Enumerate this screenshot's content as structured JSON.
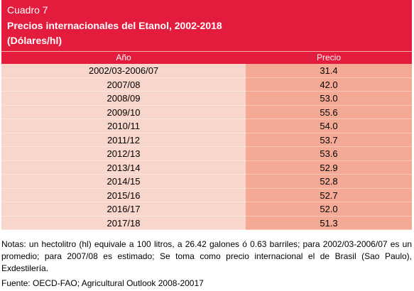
{
  "header": {
    "label": "Cuadro 7",
    "title": "Precios internacionales del Etanol, 2002-2018",
    "subtitle": "(Dólares/hl)"
  },
  "table": {
    "columns": [
      "Año",
      "Precio"
    ],
    "rows": [
      [
        "2002/03-2006/07",
        "31.4"
      ],
      [
        "2007/08",
        "42.0"
      ],
      [
        "2008/09",
        "53.0"
      ],
      [
        "2009/10",
        "55.6"
      ],
      [
        "2010/11",
        "54.0"
      ],
      [
        "2011/12",
        "53.7"
      ],
      [
        "2012/13",
        "53.6"
      ],
      [
        "2013/14",
        "52.9"
      ],
      [
        "2014/15",
        "52.8"
      ],
      [
        "2015/16",
        "52.7"
      ],
      [
        "2016/17",
        "52.0"
      ],
      [
        "2017/18",
        "51.3"
      ]
    ]
  },
  "notes": "Notas: un hectolitro (hl) equivale a 100 litros, a 26.42 galones ó 0.63 barriles; para 2002/03-2006/07 es un promedio; para 2007/08 es estimado; Se toma como precio internacional el de Brasil (Sao Paulo), Exdestilería.",
  "source": "Fuente: OECD-FAO; Agricultural Outlook 2008-20017"
}
